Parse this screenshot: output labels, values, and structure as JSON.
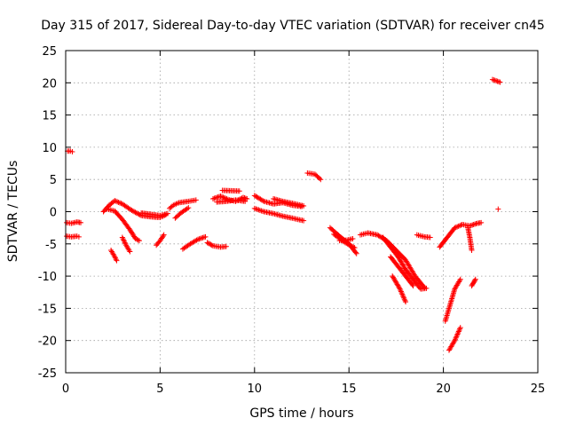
{
  "chart_data": {
    "type": "scatter",
    "title": "Day 315 of 2017, Sidereal Day-to-day VTEC variation (SDTVAR) for receiver cn45",
    "xlabel": "GPS time / hours",
    "ylabel": "SDTVAR / TECUs",
    "xlim": [
      0,
      25
    ],
    "ylim": [
      -25,
      25
    ],
    "grid": true,
    "marker": "+",
    "color": "#ff0000",
    "x_ticks": [
      "0",
      "5",
      "10",
      "15",
      "20",
      "25"
    ],
    "y_ticks": [
      "25",
      "20",
      "15",
      "10",
      "5",
      "0",
      "-5",
      "-10",
      "-15",
      "-20",
      "-25"
    ],
    "tracks": [
      {
        "name": "trk01",
        "points": [
          [
            0.1,
            9.4
          ],
          [
            0.25,
            9.4
          ],
          [
            0.35,
            9.3
          ]
        ]
      },
      {
        "name": "trk02",
        "points": [
          [
            0.05,
            -1.7
          ],
          [
            0.3,
            -1.8
          ],
          [
            0.6,
            -1.6
          ],
          [
            0.8,
            -1.7
          ]
        ]
      },
      {
        "name": "trk03",
        "points": [
          [
            0.05,
            -3.8
          ],
          [
            0.3,
            -3.9
          ],
          [
            0.6,
            -3.8
          ],
          [
            0.7,
            -3.9
          ]
        ]
      },
      {
        "name": "trk04",
        "points": [
          [
            2.0,
            0.0
          ],
          [
            2.3,
            1.0
          ],
          [
            2.6,
            1.7
          ],
          [
            3.0,
            1.2
          ],
          [
            3.5,
            0.2
          ],
          [
            4.0,
            -0.6
          ],
          [
            4.5,
            -0.8
          ],
          [
            5.0,
            -0.9
          ],
          [
            5.3,
            -0.5
          ]
        ]
      },
      {
        "name": "trk05",
        "points": [
          [
            2.2,
            0.4
          ],
          [
            2.6,
            0.1
          ],
          [
            3.0,
            -1.2
          ],
          [
            3.4,
            -2.8
          ],
          [
            3.7,
            -4.2
          ],
          [
            3.9,
            -4.5
          ]
        ]
      },
      {
        "name": "trk06",
        "points": [
          [
            2.4,
            -6.0
          ],
          [
            2.6,
            -7.0
          ],
          [
            2.7,
            -7.6
          ]
        ]
      },
      {
        "name": "trk07",
        "points": [
          [
            3.0,
            -4.0
          ],
          [
            3.2,
            -5.2
          ],
          [
            3.4,
            -6.2
          ]
        ]
      },
      {
        "name": "trk08",
        "points": [
          [
            4.0,
            -0.2
          ],
          [
            4.5,
            -0.4
          ],
          [
            5.0,
            -0.6
          ],
          [
            5.4,
            -0.3
          ]
        ]
      },
      {
        "name": "trk09",
        "points": [
          [
            4.8,
            -5.2
          ],
          [
            5.0,
            -4.5
          ],
          [
            5.2,
            -3.6
          ]
        ]
      },
      {
        "name": "trk10",
        "points": [
          [
            5.5,
            0.5
          ],
          [
            5.7,
            1.0
          ],
          [
            6.0,
            1.4
          ],
          [
            6.5,
            1.6
          ],
          [
            6.9,
            1.8
          ]
        ]
      },
      {
        "name": "trk11",
        "points": [
          [
            5.8,
            -1.0
          ],
          [
            6.1,
            -0.2
          ],
          [
            6.5,
            0.6
          ]
        ]
      },
      {
        "name": "trk12",
        "points": [
          [
            6.2,
            -5.8
          ],
          [
            6.6,
            -5.0
          ],
          [
            7.0,
            -4.3
          ],
          [
            7.4,
            -3.9
          ]
        ]
      },
      {
        "name": "trk13",
        "points": [
          [
            7.5,
            -4.8
          ],
          [
            7.8,
            -5.3
          ],
          [
            8.2,
            -5.5
          ],
          [
            8.5,
            -5.4
          ]
        ]
      },
      {
        "name": "trk14",
        "points": [
          [
            7.8,
            2.0
          ],
          [
            8.2,
            2.4
          ],
          [
            8.6,
            1.9
          ],
          [
            9.0,
            1.6
          ],
          [
            9.4,
            2.2
          ],
          [
            9.6,
            2.0
          ]
        ]
      },
      {
        "name": "trk15",
        "points": [
          [
            8.0,
            1.5
          ],
          [
            8.5,
            1.6
          ],
          [
            9.0,
            1.8
          ],
          [
            9.5,
            1.6
          ]
        ]
      },
      {
        "name": "trk16",
        "points": [
          [
            8.3,
            3.3
          ],
          [
            9.2,
            3.2
          ]
        ]
      },
      {
        "name": "trk17",
        "points": [
          [
            10.0,
            2.5
          ],
          [
            10.5,
            1.6
          ],
          [
            11.0,
            1.2
          ],
          [
            11.5,
            1.4
          ],
          [
            12.0,
            1.0
          ],
          [
            12.5,
            0.8
          ]
        ]
      },
      {
        "name": "trk18",
        "points": [
          [
            10.0,
            0.5
          ],
          [
            10.5,
            0.0
          ],
          [
            11.0,
            -0.3
          ],
          [
            11.5,
            -0.7
          ],
          [
            12.0,
            -1.0
          ],
          [
            12.6,
            -1.4
          ]
        ]
      },
      {
        "name": "trk19",
        "points": [
          [
            11.0,
            2.0
          ],
          [
            11.5,
            1.6
          ],
          [
            12.0,
            1.3
          ],
          [
            12.6,
            0.9
          ]
        ]
      },
      {
        "name": "trk20",
        "points": [
          [
            12.8,
            6.0
          ],
          [
            13.2,
            5.8
          ],
          [
            13.5,
            5.0
          ]
        ]
      },
      {
        "name": "trk21",
        "points": [
          [
            14.0,
            -2.5
          ],
          [
            14.5,
            -3.8
          ],
          [
            15.0,
            -5.0
          ],
          [
            15.4,
            -6.5
          ]
        ]
      },
      {
        "name": "trk22",
        "points": [
          [
            14.2,
            -3.5
          ],
          [
            14.8,
            -4.8
          ],
          [
            15.3,
            -5.6
          ]
        ]
      },
      {
        "name": "trk23",
        "points": [
          [
            14.5,
            -4.5
          ],
          [
            14.9,
            -4.4
          ],
          [
            15.2,
            -4.2
          ]
        ]
      },
      {
        "name": "trk24",
        "points": [
          [
            15.6,
            -3.6
          ],
          [
            16.0,
            -3.3
          ],
          [
            16.5,
            -3.6
          ],
          [
            17.0,
            -4.5
          ],
          [
            17.5,
            -6.0
          ],
          [
            18.0,
            -7.5
          ],
          [
            18.5,
            -10.0
          ],
          [
            19.0,
            -11.8
          ]
        ]
      },
      {
        "name": "trk25",
        "points": [
          [
            16.8,
            -4.0
          ],
          [
            17.2,
            -5.5
          ],
          [
            17.6,
            -7.0
          ],
          [
            18.0,
            -9.0
          ],
          [
            18.4,
            -10.5
          ],
          [
            18.8,
            -12.0
          ],
          [
            19.1,
            -11.9
          ]
        ]
      },
      {
        "name": "trk26",
        "points": [
          [
            17.2,
            -7.0
          ],
          [
            17.6,
            -8.5
          ],
          [
            18.0,
            -10.0
          ],
          [
            18.4,
            -11.5
          ]
        ]
      },
      {
        "name": "trk27",
        "points": [
          [
            17.3,
            -10.0
          ],
          [
            17.7,
            -12.0
          ],
          [
            18.0,
            -14.0
          ]
        ]
      },
      {
        "name": "trk28",
        "points": [
          [
            18.6,
            -3.6
          ],
          [
            19.0,
            -3.9
          ],
          [
            19.3,
            -4.0
          ]
        ]
      },
      {
        "name": "trk29",
        "points": [
          [
            19.8,
            -5.5
          ],
          [
            20.2,
            -4.0
          ],
          [
            20.6,
            -2.5
          ],
          [
            21.0,
            -2.0
          ]
        ]
      },
      {
        "name": "trk30",
        "points": [
          [
            20.1,
            -17.0
          ],
          [
            20.3,
            -15.0
          ],
          [
            20.6,
            -12.0
          ],
          [
            20.9,
            -10.5
          ]
        ]
      },
      {
        "name": "trk31",
        "points": [
          [
            20.3,
            -21.5
          ],
          [
            20.6,
            -20.0
          ],
          [
            20.9,
            -18.0
          ]
        ]
      },
      {
        "name": "trk32",
        "points": [
          [
            21.0,
            -2.0
          ],
          [
            21.4,
            -2.2
          ],
          [
            21.8,
            -1.8
          ],
          [
            22.0,
            -1.7
          ]
        ]
      },
      {
        "name": "trk33",
        "points": [
          [
            21.3,
            -2.5
          ],
          [
            21.4,
            -4.0
          ],
          [
            21.5,
            -6.0
          ]
        ]
      },
      {
        "name": "trk34",
        "points": [
          [
            21.5,
            -11.5
          ],
          [
            21.6,
            -11.0
          ],
          [
            21.7,
            -10.5
          ]
        ]
      },
      {
        "name": "trk35",
        "points": [
          [
            22.6,
            20.5
          ],
          [
            22.8,
            20.3
          ],
          [
            23.0,
            20.1
          ]
        ]
      },
      {
        "name": "trk36",
        "points": [
          [
            22.9,
            0.4
          ]
        ]
      }
    ]
  }
}
